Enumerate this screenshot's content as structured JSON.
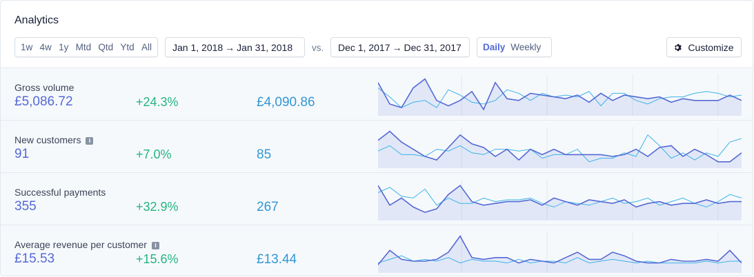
{
  "title": "Analytics",
  "ranges": [
    "1w",
    "4w",
    "1y",
    "Mtd",
    "Qtd",
    "Ytd",
    "All"
  ],
  "current_range": {
    "start": "Jan 1, 2018",
    "arrow": "→",
    "end": "Jan 31, 2018"
  },
  "vs_label": "vs.",
  "compare_range": {
    "start": "Dec 1, 2017",
    "arrow": "→",
    "end": "Dec 31, 2017"
  },
  "granularity": {
    "daily": "Daily",
    "weekly": "Weekly",
    "selected": "Daily"
  },
  "customize_label": "Customize",
  "colors": {
    "current": "#5469d4",
    "previous": "#3ab3e6",
    "positive": "#24b47e"
  },
  "metrics": [
    {
      "label": "Gross volume",
      "info": false,
      "value": "£5,086.72",
      "change": "+24.3%",
      "previous": "£4,090.86",
      "current_series": [
        0.85,
        0.25,
        0.15,
        0.7,
        0.95,
        0.35,
        0.2,
        0.35,
        0.6,
        0.1,
        0.85,
        0.4,
        0.35,
        0.55,
        0.5,
        0.45,
        0.4,
        0.5,
        0.3,
        0.55,
        0.35,
        0.5,
        0.45,
        0.4,
        0.45,
        0.3,
        0.4,
        0.35,
        0.35,
        0.35,
        0.5,
        0.35
      ],
      "previous_series": [
        0.7,
        0.45,
        0.15,
        0.3,
        0.35,
        0.15,
        0.65,
        0.5,
        0.3,
        0.25,
        0.35,
        0.65,
        0.55,
        0.35,
        0.55,
        0.45,
        0.5,
        0.45,
        0.6,
        0.2,
        0.55,
        0.55,
        0.35,
        0.25,
        0.4,
        0.45,
        0.45,
        0.55,
        0.6,
        0.55,
        0.45,
        0.5
      ]
    },
    {
      "label": "New customers",
      "info": true,
      "value": "91",
      "change": "+7.0%",
      "previous": "85",
      "current_series": [
        0.7,
        0.95,
        0.65,
        0.45,
        0.25,
        0.15,
        0.5,
        0.85,
        0.6,
        0.5,
        0.25,
        0.45,
        0.15,
        0.45,
        0.3,
        0.45,
        0.3,
        0.3,
        0.3,
        0.3,
        0.25,
        0.3,
        0.45,
        0.25,
        0.5,
        0.55,
        0.25,
        0.45,
        0.3,
        0.1,
        0.1,
        0.35
      ],
      "previous_series": [
        0.4,
        0.55,
        0.3,
        0.3,
        0.25,
        0.45,
        0.4,
        0.55,
        0.35,
        0.3,
        0.45,
        0.45,
        0.4,
        0.45,
        0.2,
        0.3,
        0.3,
        0.45,
        0.1,
        0.2,
        0.2,
        0.35,
        0.25,
        0.85,
        0.55,
        0.2,
        0.35,
        0.15,
        0.35,
        0.25,
        0.65,
        0.75
      ]
    },
    {
      "label": "Successful payments",
      "info": false,
      "value": "355",
      "change": "+32.9%",
      "previous": "267",
      "current_series": [
        0.9,
        0.35,
        0.55,
        0.3,
        0.15,
        0.25,
        0.65,
        0.9,
        0.45,
        0.35,
        0.4,
        0.45,
        0.45,
        0.5,
        0.35,
        0.55,
        0.45,
        0.35,
        0.5,
        0.45,
        0.4,
        0.5,
        0.3,
        0.4,
        0.45,
        0.35,
        0.4,
        0.4,
        0.5,
        0.4,
        0.45,
        0.45
      ],
      "previous_series": [
        0.7,
        0.85,
        0.6,
        0.55,
        0.8,
        0.35,
        0.55,
        0.4,
        0.4,
        0.55,
        0.45,
        0.5,
        0.5,
        0.55,
        0.4,
        0.3,
        0.45,
        0.4,
        0.35,
        0.45,
        0.55,
        0.4,
        0.45,
        0.55,
        0.35,
        0.45,
        0.55,
        0.4,
        0.3,
        0.45,
        0.65,
        0.55
      ]
    },
    {
      "label": "Average revenue per customer",
      "info": true,
      "value": "£15.53",
      "change": "+15.6%",
      "previous": "£13.44",
      "current_series": [
        0.15,
        0.55,
        0.3,
        0.25,
        0.25,
        0.3,
        0.5,
        0.95,
        0.35,
        0.3,
        0.35,
        0.35,
        0.2,
        0.3,
        0.25,
        0.2,
        0.35,
        0.5,
        0.3,
        0.3,
        0.5,
        0.4,
        0.25,
        0.2,
        0.2,
        0.3,
        0.25,
        0.25,
        0.3,
        0.25,
        0.55,
        0.2
      ],
      "previous_series": [
        0.2,
        0.3,
        0.4,
        0.25,
        0.3,
        0.25,
        0.35,
        0.2,
        0.3,
        0.25,
        0.25,
        0.2,
        0.3,
        0.2,
        0.25,
        0.25,
        0.2,
        0.35,
        0.2,
        0.25,
        0.3,
        0.25,
        0.2,
        0.25,
        0.2,
        0.2,
        0.2,
        0.2,
        0.25,
        0.2,
        0.25,
        0.25
      ]
    }
  ]
}
